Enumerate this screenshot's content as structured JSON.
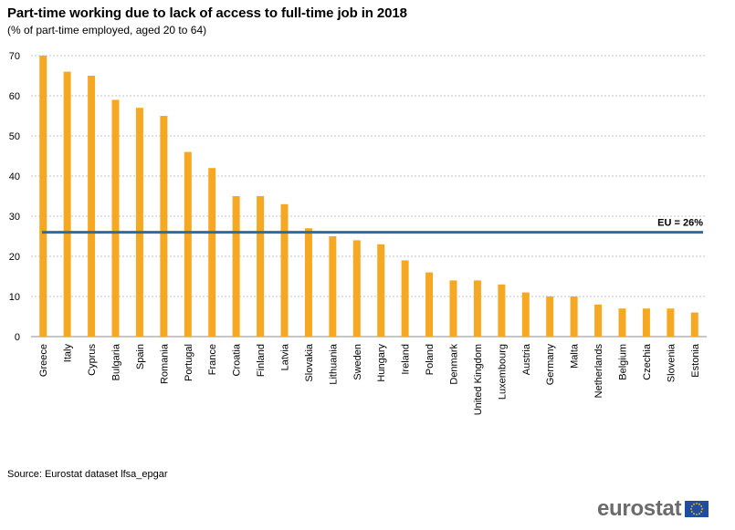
{
  "chart_data": {
    "type": "bar",
    "title": "Part-time working due to lack of access to full-time job in 2018",
    "subtitle": "(% of part-time employed, aged 20 to 64)",
    "categories": [
      "Greece",
      "Italy",
      "Cyprus",
      "Bulgaria",
      "Spain",
      "Romania",
      "Portugal",
      "France",
      "Croatia",
      "Finland",
      "Latvia",
      "Slovakia",
      "Lithuania",
      "Sweden",
      "Hungary",
      "Ireland",
      "Poland",
      "Denmark",
      "United Kingdom",
      "Luxembourg",
      "Austria",
      "Germany",
      "Malta",
      "Netherlands",
      "Belgium",
      "Czechia",
      "Slovenia",
      "Estonia"
    ],
    "values": [
      70,
      66,
      65,
      59,
      57,
      55,
      46,
      42,
      35,
      35,
      33,
      27,
      25,
      24,
      23,
      19,
      16,
      14,
      14,
      13,
      11,
      10,
      10,
      8,
      7,
      7,
      7,
      6
    ],
    "ylim": [
      0,
      70
    ],
    "yticks": [
      0,
      10,
      20,
      30,
      40,
      50,
      60,
      70
    ],
    "grid": true,
    "xlabel": "",
    "ylabel": "",
    "reference_line": {
      "value": 26,
      "label": "EU = 26%"
    },
    "colors": {
      "bar": "#f7a823",
      "reference": "#2b6ca3",
      "grid": "#b0b0b0"
    }
  },
  "source": "Source: Eurostat dataset lfsa_epgar",
  "logo": {
    "text": "eurostat",
    "icon": "eu-flag-icon"
  }
}
